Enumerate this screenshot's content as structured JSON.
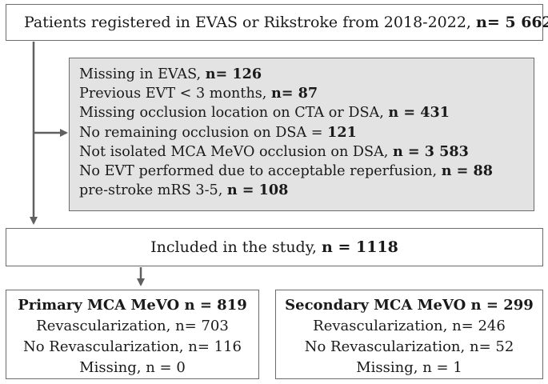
{
  "top_box": {
    "text": "Patients registered in EVAS or Rikstroke from 2018-2022, ",
    "count": "n= 5 662"
  },
  "exclusions": [
    {
      "text": "Missing in EVAS, ",
      "count": "n= 126"
    },
    {
      "text": "Previous EVT < 3 months, ",
      "count": "n= 87"
    },
    {
      "text": "Missing occlusion location on CTA or DSA, ",
      "count": "n = 431"
    },
    {
      "text": "No remaining occlusion on DSA = ",
      "count": "121"
    },
    {
      "text": "Not isolated MCA MeVO occlusion on DSA, ",
      "count": "n = 3 583"
    },
    {
      "text": "No EVT performed due to acceptable reperfusion, ",
      "count": "n = 88"
    },
    {
      "text": "pre-stroke mRS 3-5, ",
      "count": "n = 108"
    }
  ],
  "included_box": {
    "text": "Included in the study, ",
    "count": "n = 1118"
  },
  "primary_box": {
    "title": "Primary MCA MeVO n = 819",
    "lines": [
      "Revascularization, n= 703",
      "No Revascularization, n= 116",
      "Missing, n = 0"
    ]
  },
  "secondary_box": {
    "title": "Secondary MCA MeVO n = 299",
    "lines": [
      "Revascularization, n= 246",
      "No Revascularization, n= 52",
      "Missing, n = 1"
    ]
  },
  "colors": {
    "arrow": "#606060",
    "border": "#6b6b6b",
    "exclusion_fill": "#e3e3e3"
  }
}
